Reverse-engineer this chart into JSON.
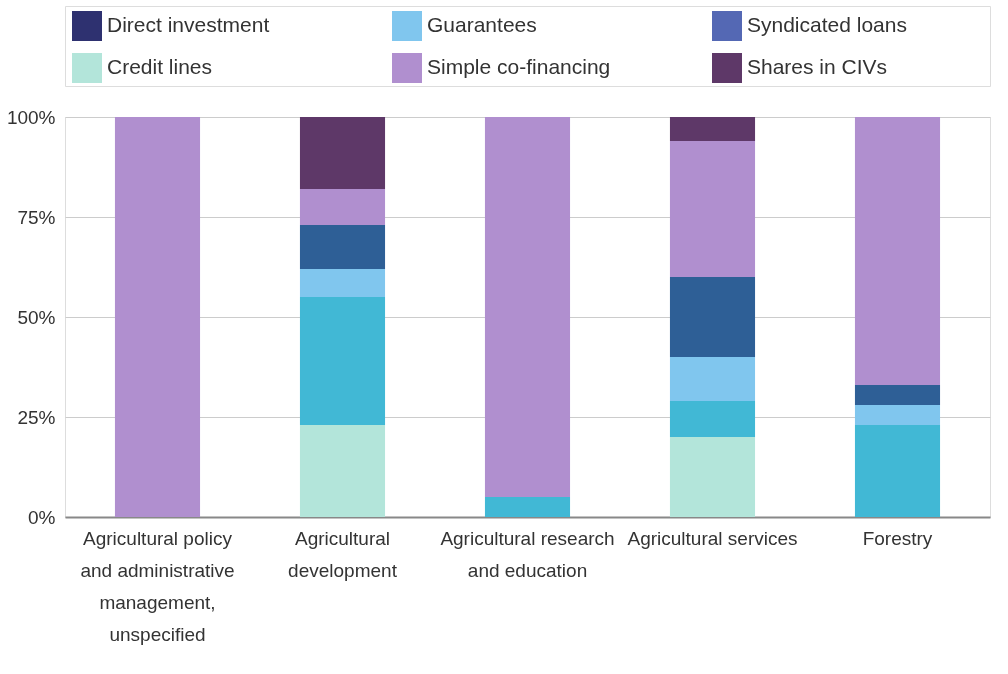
{
  "chart_data": {
    "type": "bar",
    "stacked": true,
    "categories": [
      "Agricultural policy and administrative management, unspecified",
      "Agricultural development",
      "Agricultural research and education",
      "Agricultural services",
      "Forestry"
    ],
    "series": [
      {
        "name": "Direct investment",
        "color": "#2e3170",
        "values": [
          null,
          null,
          null,
          null,
          null
        ]
      },
      {
        "name": "Credit lines",
        "color": "#b3e5da",
        "values": [
          0,
          23,
          0,
          20,
          0
        ]
      },
      {
        "color": "#41b8d5",
        "values": [
          0,
          32,
          5,
          9,
          23
        ]
      },
      {
        "name": "Guarantees",
        "color": "#80c6ee",
        "values": [
          0,
          7,
          0,
          11,
          5
        ]
      },
      {
        "color": "#2e5f96",
        "values": [
          0,
          11,
          0,
          20,
          5
        ]
      },
      {
        "name": "Simple co-financing",
        "color": "#b08fcf",
        "values": [
          100,
          9,
          95,
          34,
          67
        ]
      },
      {
        "name": "Syndicated loans",
        "color": "#5468b4",
        "values": [
          null,
          null,
          null,
          null,
          null
        ]
      },
      {
        "name": "Shares in CIVs",
        "color": "#5e3868",
        "values": [
          0,
          18,
          0,
          6,
          0
        ]
      }
    ],
    "ylim": [
      0,
      100
    ],
    "yticks": [
      {
        "value": 0,
        "label": "0%"
      },
      {
        "value": 25,
        "label": "25%"
      },
      {
        "value": 50,
        "label": "50%"
      },
      {
        "value": 75,
        "label": "75%"
      },
      {
        "value": 100,
        "label": "100%"
      }
    ],
    "grid": "y",
    "legend": "top left"
  }
}
